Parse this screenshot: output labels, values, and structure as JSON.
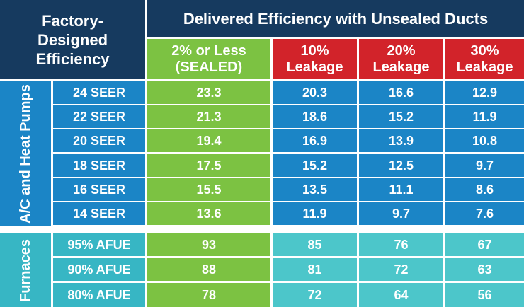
{
  "header": {
    "factory_label": "Factory-\nDesigned\nEfficiency",
    "title": "Delivered Efficiency with Unsealed Ducts",
    "columns": [
      "2% or Less\n(SEALED)",
      "10%\nLeakage",
      "20%\nLeakage",
      "30%\nLeakage"
    ]
  },
  "groups": {
    "ac": "A/C and Heat Pumps",
    "furnaces": "Furnaces"
  },
  "ac_rows": [
    {
      "label": "24 SEER",
      "values": [
        "23.3",
        "20.3",
        "16.6",
        "12.9"
      ]
    },
    {
      "label": "22 SEER",
      "values": [
        "21.3",
        "18.6",
        "15.2",
        "11.9"
      ]
    },
    {
      "label": "20 SEER",
      "values": [
        "19.4",
        "16.9",
        "13.9",
        "10.8"
      ]
    },
    {
      "label": "18 SEER",
      "values": [
        "17.5",
        "15.2",
        "12.5",
        "9.7"
      ]
    },
    {
      "label": "16 SEER",
      "values": [
        "15.5",
        "13.5",
        "11.1",
        "8.6"
      ]
    },
    {
      "label": "14 SEER",
      "values": [
        "13.6",
        "11.9",
        "9.7",
        "7.6"
      ]
    }
  ],
  "furnace_rows": [
    {
      "label": "95% AFUE",
      "values": [
        "93",
        "85",
        "76",
        "67"
      ]
    },
    {
      "label": "90% AFUE",
      "values": [
        "88",
        "81",
        "72",
        "63"
      ]
    },
    {
      "label": "80% AFUE",
      "values": [
        "78",
        "72",
        "64",
        "56"
      ]
    }
  ],
  "colors": {
    "navy": "#163a5f",
    "green": "#7cc242",
    "red": "#d2232a",
    "blue": "#1b85c6",
    "teal": "#4cc6ca"
  }
}
